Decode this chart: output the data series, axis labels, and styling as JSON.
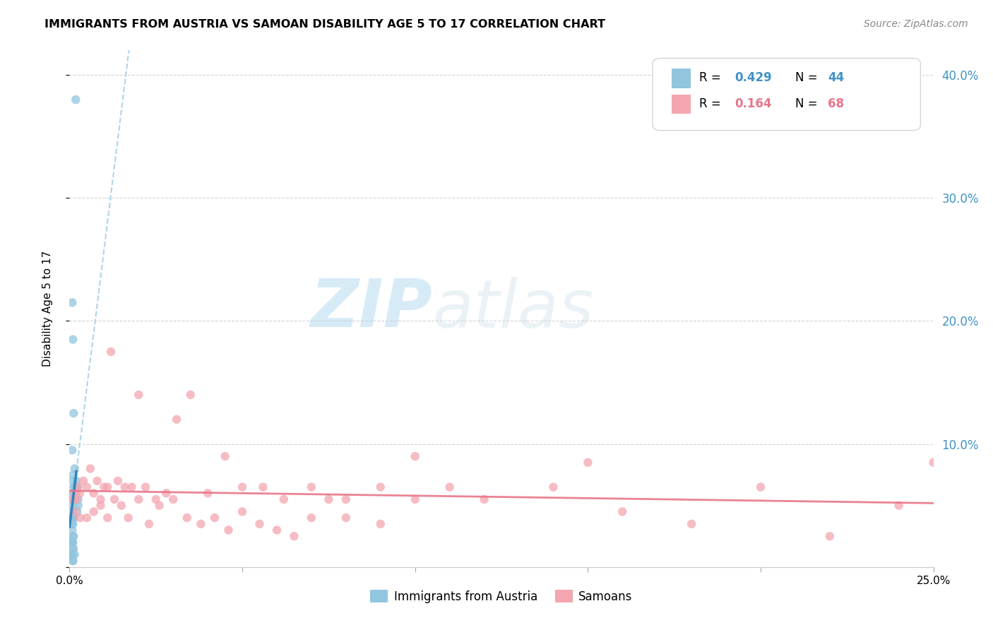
{
  "title": "IMMIGRANTS FROM AUSTRIA VS SAMOAN DISABILITY AGE 5 TO 17 CORRELATION CHART",
  "source": "Source: ZipAtlas.com",
  "ylabel": "Disability Age 5 to 17",
  "legend_r1": "R = 0.429",
  "legend_n1": "N = 44",
  "legend_r2": "R = 0.164",
  "legend_n2": "N = 68",
  "legend_label1": "Immigrants from Austria",
  "legend_label2": "Samoans",
  "color_austria": "#92c5de",
  "color_samoan": "#f4a6b0",
  "color_trendline_austria": "#3182bd",
  "color_trendline_samoan": "#e8768a",
  "color_trendline_dash": "#9ecae1",
  "xlim": [
    0.0,
    0.25
  ],
  "ylim": [
    0.0,
    0.42
  ],
  "yticks": [
    0.0,
    0.1,
    0.2,
    0.3,
    0.4
  ],
  "xticks": [
    0.0,
    0.05,
    0.1,
    0.15,
    0.2,
    0.25
  ],
  "austria_x": [
    0.0008,
    0.001,
    0.0012,
    0.0015,
    0.0005,
    0.0008,
    0.001,
    0.0015,
    0.0018,
    0.002,
    0.0022,
    0.0025,
    0.0008,
    0.001,
    0.001,
    0.0012,
    0.0015,
    0.0018,
    0.002,
    0.0022,
    0.0025,
    0.001,
    0.0012,
    0.0008,
    0.0005,
    0.0008,
    0.001,
    0.0012,
    0.0008,
    0.001,
    0.0008,
    0.0012,
    0.001,
    0.0008,
    0.001,
    0.0012,
    0.0015,
    0.0008,
    0.001,
    0.0008,
    0.001,
    0.0018,
    0.0008,
    0.001
  ],
  "austria_y": [
    0.215,
    0.185,
    0.125,
    0.065,
    0.04,
    0.095,
    0.075,
    0.08,
    0.06,
    0.065,
    0.065,
    0.05,
    0.055,
    0.06,
    0.07,
    0.04,
    0.055,
    0.065,
    0.07,
    0.045,
    0.055,
    0.04,
    0.065,
    0.035,
    0.045,
    0.055,
    0.05,
    0.06,
    0.03,
    0.035,
    0.02,
    0.025,
    0.04,
    0.015,
    0.02,
    0.015,
    0.01,
    0.01,
    0.005,
    0.01,
    0.005,
    0.38,
    0.02,
    0.025
  ],
  "samoan_x": [
    0.001,
    0.0015,
    0.002,
    0.0025,
    0.003,
    0.004,
    0.005,
    0.006,
    0.007,
    0.008,
    0.009,
    0.01,
    0.011,
    0.012,
    0.014,
    0.016,
    0.018,
    0.02,
    0.022,
    0.025,
    0.028,
    0.031,
    0.035,
    0.04,
    0.045,
    0.05,
    0.056,
    0.062,
    0.07,
    0.08,
    0.09,
    0.1,
    0.11,
    0.12,
    0.14,
    0.16,
    0.18,
    0.2,
    0.22,
    0.24,
    0.0015,
    0.003,
    0.005,
    0.007,
    0.009,
    0.011,
    0.013,
    0.015,
    0.017,
    0.02,
    0.023,
    0.026,
    0.03,
    0.034,
    0.038,
    0.042,
    0.046,
    0.05,
    0.055,
    0.06,
    0.065,
    0.07,
    0.075,
    0.08,
    0.09,
    0.1,
    0.15,
    0.25
  ],
  "samoan_y": [
    0.055,
    0.06,
    0.055,
    0.065,
    0.06,
    0.07,
    0.065,
    0.08,
    0.06,
    0.07,
    0.05,
    0.065,
    0.065,
    0.175,
    0.07,
    0.065,
    0.065,
    0.14,
    0.065,
    0.055,
    0.06,
    0.12,
    0.14,
    0.06,
    0.09,
    0.065,
    0.065,
    0.055,
    0.065,
    0.055,
    0.065,
    0.09,
    0.065,
    0.055,
    0.065,
    0.045,
    0.035,
    0.065,
    0.025,
    0.05,
    0.045,
    0.04,
    0.04,
    0.045,
    0.055,
    0.04,
    0.055,
    0.05,
    0.04,
    0.055,
    0.035,
    0.05,
    0.055,
    0.04,
    0.035,
    0.04,
    0.03,
    0.045,
    0.035,
    0.03,
    0.025,
    0.04,
    0.055,
    0.04,
    0.035,
    0.055,
    0.085,
    0.085
  ]
}
